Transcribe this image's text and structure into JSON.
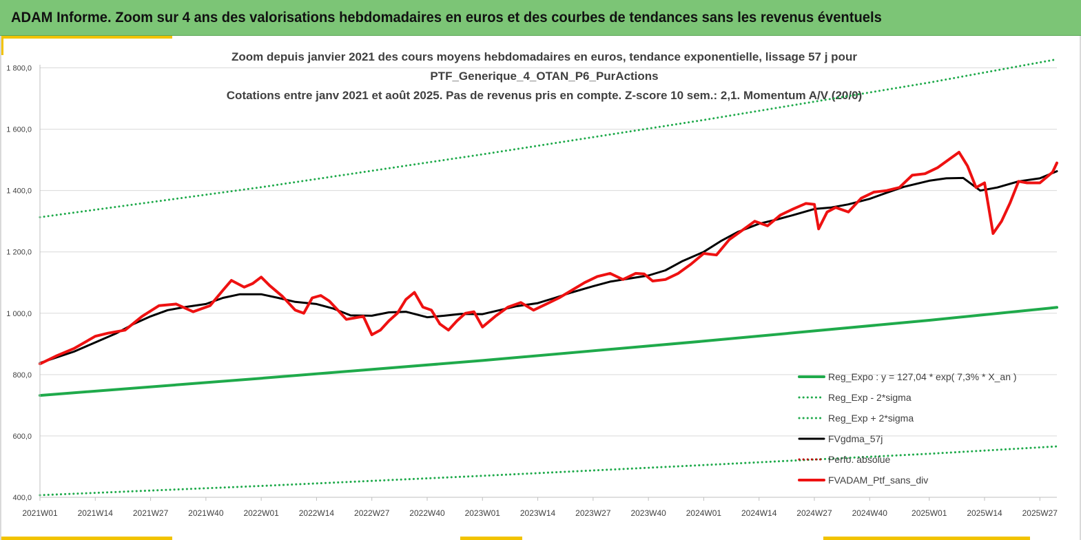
{
  "banner": {
    "title": "ADAM Informe. Zoom sur 4 ans des valorisations hebdomadaires en euros et des courbes de tendances sans les revenus éventuels",
    "background": "#7cc576",
    "accent": "#f2c300"
  },
  "chart_data": {
    "type": "line",
    "title": [
      "Zoom depuis janvier 2021 des cours moyens hebdomadaires  en euros, tendance exponentielle, lissage 57 j pour",
      "PTF_Generique_4_OTAN_P6_PurActions",
      "Cotations  entre janv 2021 et août 2025. Pas de revenus pris en compte. Z-score 10 sem.: 2,1. Momentum A/V (20/0)"
    ],
    "x_unit": "week index (0 = 2021W01)",
    "x_ticks": [
      {
        "x": 0,
        "label": "2021W01"
      },
      {
        "x": 13,
        "label": "2021W14"
      },
      {
        "x": 26,
        "label": "2021W27"
      },
      {
        "x": 39,
        "label": "2021W40"
      },
      {
        "x": 52,
        "label": "2022W01"
      },
      {
        "x": 65,
        "label": "2022W14"
      },
      {
        "x": 78,
        "label": "2022W27"
      },
      {
        "x": 91,
        "label": "2022W40"
      },
      {
        "x": 104,
        "label": "2023W01"
      },
      {
        "x": 117,
        "label": "2023W14"
      },
      {
        "x": 130,
        "label": "2023W27"
      },
      {
        "x": 143,
        "label": "2023W40"
      },
      {
        "x": 156,
        "label": "2024W01"
      },
      {
        "x": 169,
        "label": "2024W14"
      },
      {
        "x": 182,
        "label": "2024W27"
      },
      {
        "x": 195,
        "label": "2024W40"
      },
      {
        "x": 209,
        "label": "2025W01"
      },
      {
        "x": 222,
        "label": "2025W14"
      },
      {
        "x": 235,
        "label": "2025W27"
      }
    ],
    "xlim": [
      0,
      239
    ],
    "ylim": [
      400,
      1900
    ],
    "y_ticks": [
      {
        "v": 400,
        "label": "400,0"
      },
      {
        "v": 600,
        "label": "600,0"
      },
      {
        "v": 800,
        "label": "800,0"
      },
      {
        "v": 1000,
        "label": "1 000,0"
      },
      {
        "v": 1200,
        "label": "1 200,0"
      },
      {
        "v": 1400,
        "label": "1 400,0"
      },
      {
        "v": 1600,
        "label": "1 600,0"
      },
      {
        "v": 1800,
        "label": "1 800,0"
      }
    ],
    "grid": "horizontal",
    "legend_position": "bottom-right",
    "series": [
      {
        "name": "Reg_Expo : y = 127,04 * exp( 7,3% *  X_an )",
        "color": "#1faa4b",
        "style": "solid",
        "width": 4,
        "x": [
          0,
          52,
          104,
          156,
          209,
          239
        ],
        "y": [
          732,
          788,
          846,
          909,
          977,
          1019
        ]
      },
      {
        "name": "Reg_Exp - 2*sigma",
        "color": "#1faa4b",
        "style": "dotted",
        "width": 3,
        "x": [
          0,
          52,
          104,
          156,
          209,
          239
        ],
        "y": [
          407,
          437,
          470,
          505,
          542,
          566
        ]
      },
      {
        "name": "Reg_Exp + 2*sigma",
        "color": "#1faa4b",
        "style": "dotted",
        "width": 3,
        "x": [
          0,
          52,
          104,
          156,
          209,
          239
        ],
        "y": [
          1313,
          1411,
          1518,
          1630,
          1752,
          1828
        ]
      },
      {
        "name": "FVgdma_57j",
        "color": "#000000",
        "style": "solid",
        "width": 3,
        "x": [
          0,
          8,
          13,
          18,
          22,
          26,
          30,
          34,
          39,
          43,
          47,
          52,
          56,
          60,
          65,
          69,
          73,
          78,
          82,
          86,
          91,
          95,
          99,
          104,
          108,
          112,
          117,
          121,
          125,
          130,
          134,
          138,
          143,
          147,
          151,
          156,
          160,
          164,
          169,
          173,
          177,
          182,
          186,
          190,
          195,
          199,
          203,
          209,
          213,
          217,
          221,
          225,
          230,
          235,
          239
        ],
        "y": [
          838,
          875,
          905,
          935,
          965,
          990,
          1010,
          1020,
          1030,
          1050,
          1062,
          1062,
          1050,
          1037,
          1030,
          1015,
          993,
          992,
          1003,
          1005,
          987,
          992,
          998,
          997,
          1010,
          1023,
          1033,
          1050,
          1068,
          1088,
          1103,
          1112,
          1123,
          1140,
          1170,
          1200,
          1235,
          1265,
          1292,
          1305,
          1320,
          1340,
          1345,
          1355,
          1373,
          1393,
          1412,
          1432,
          1440,
          1441,
          1400,
          1410,
          1430,
          1440,
          1463
        ]
      },
      {
        "name": "Perfo. absolue",
        "color": "#c00000",
        "style": "dotted",
        "width": 3,
        "x": [],
        "y": []
      },
      {
        "name": "FVADAM_Ptf_sans_div",
        "color": "#ee1111",
        "style": "solid",
        "width": 4,
        "x": [
          0,
          4,
          8,
          13,
          16,
          20,
          24,
          28,
          32,
          36,
          40,
          43,
          45,
          48,
          50,
          52,
          54,
          57,
          60,
          62,
          64,
          66,
          68,
          70,
          72,
          74,
          76,
          78,
          80,
          82,
          84,
          86,
          88,
          90,
          92,
          94,
          96,
          98,
          100,
          102,
          104,
          107,
          110,
          113,
          116,
          119,
          122,
          125,
          128,
          131,
          134,
          137,
          140,
          142,
          144,
          147,
          150,
          153,
          156,
          159,
          162,
          165,
          168,
          171,
          174,
          177,
          180,
          182,
          183,
          185,
          187,
          190,
          193,
          196,
          199,
          202,
          205,
          208,
          211,
          214,
          216,
          218,
          220,
          222,
          224,
          226,
          228,
          230,
          232,
          235,
          238,
          239
        ],
        "y": [
          835,
          862,
          885,
          925,
          935,
          945,
          990,
          1025,
          1030,
          1005,
          1025,
          1075,
          1107,
          1085,
          1097,
          1118,
          1090,
          1055,
          1010,
          1000,
          1050,
          1058,
          1040,
          1010,
          980,
          985,
          990,
          930,
          945,
          975,
          1000,
          1045,
          1068,
          1020,
          1010,
          965,
          945,
          975,
          1000,
          1005,
          955,
          990,
          1020,
          1035,
          1010,
          1030,
          1050,
          1075,
          1100,
          1120,
          1130,
          1110,
          1130,
          1128,
          1105,
          1110,
          1130,
          1160,
          1195,
          1190,
          1240,
          1270,
          1300,
          1285,
          1320,
          1340,
          1358,
          1355,
          1275,
          1330,
          1345,
          1330,
          1375,
          1395,
          1400,
          1410,
          1450,
          1455,
          1475,
          1505,
          1525,
          1480,
          1410,
          1425,
          1260,
          1300,
          1360,
          1430,
          1425,
          1425,
          1460,
          1490
        ]
      }
    ]
  }
}
